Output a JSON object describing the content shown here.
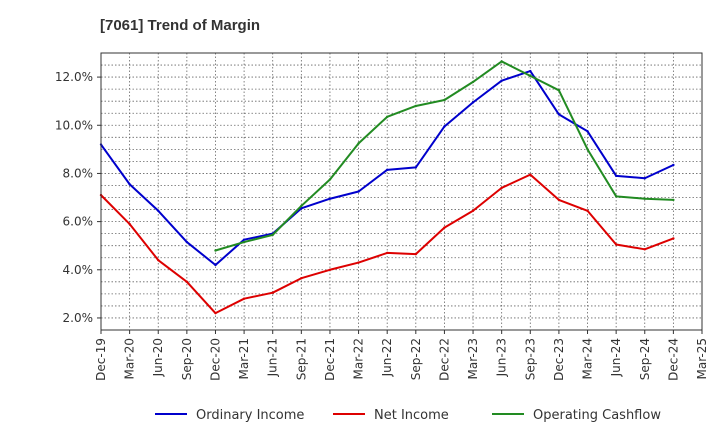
{
  "chart_data": {
    "type": "line",
    "title": "[7061]  Trend of Margin",
    "xlabel": "",
    "ylabel": "",
    "x": [
      "Dec-19",
      "Mar-20",
      "Jun-20",
      "Sep-20",
      "Dec-20",
      "Mar-21",
      "Jun-21",
      "Sep-21",
      "Dec-21",
      "Mar-22",
      "Jun-22",
      "Sep-22",
      "Dec-22",
      "Mar-23",
      "Jun-23",
      "Sep-23",
      "Dec-23",
      "Mar-24",
      "Jun-24",
      "Sep-24",
      "Dec-24",
      "Mar-25"
    ],
    "ylim": [
      1.5,
      13.0
    ],
    "yticks": [
      2.0,
      4.0,
      6.0,
      8.0,
      10.0,
      12.0
    ],
    "ytick_labels": [
      "2.0%",
      "4.0%",
      "6.0%",
      "8.0%",
      "10.0%",
      "12.0%"
    ],
    "grid": true,
    "legend_position": "bottom",
    "series": [
      {
        "name": "Ordinary Income",
        "color": "#0000cc",
        "values": [
          9.2,
          7.55,
          6.45,
          5.15,
          4.2,
          5.25,
          5.5,
          6.55,
          6.95,
          7.25,
          8.15,
          8.25,
          9.95,
          10.95,
          11.85,
          12.25,
          10.45,
          9.75,
          7.9,
          7.8,
          8.35,
          null
        ]
      },
      {
        "name": "Net Income",
        "color": "#dd0000",
        "values": [
          7.1,
          5.9,
          4.4,
          3.5,
          2.2,
          2.8,
          3.05,
          3.65,
          4.0,
          4.3,
          4.7,
          4.65,
          5.75,
          6.45,
          7.4,
          7.95,
          6.9,
          6.45,
          5.05,
          4.85,
          5.3,
          null
        ]
      },
      {
        "name": "Operating Cashflow",
        "color": "#228b22",
        "values": [
          null,
          null,
          null,
          null,
          4.8,
          5.15,
          5.45,
          6.65,
          7.75,
          9.25,
          10.35,
          10.8,
          11.05,
          11.8,
          12.65,
          12.05,
          11.45,
          9.0,
          7.05,
          6.95,
          6.9,
          null
        ]
      }
    ]
  }
}
